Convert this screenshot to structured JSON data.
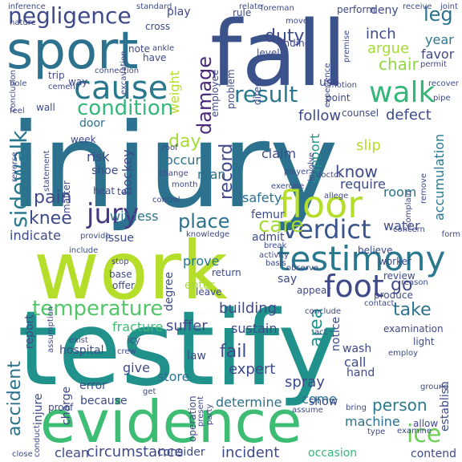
{
  "words": [
    {
      "text": "injury",
      "color": "#2c718e"
    },
    {
      "text": "testify",
      "color": "#21918c"
    },
    {
      "text": "work",
      "color": "#b5de2b"
    },
    {
      "text": "fall",
      "color": "#3b528b"
    },
    {
      "text": "evidence",
      "color": "#3dbc74"
    },
    {
      "text": "sport",
      "color": "#2c718e"
    },
    {
      "text": "floor",
      "color": "#b5de2b"
    },
    {
      "text": "testimony",
      "color": "#2a788e"
    },
    {
      "text": "walk",
      "color": "#35b779"
    },
    {
      "text": "cause",
      "color": "#2a788e"
    },
    {
      "text": "foot",
      "color": "#3e4a89"
    },
    {
      "text": "jury",
      "color": "#443983"
    },
    {
      "text": "verdict",
      "color": "#39568c"
    },
    {
      "text": "negligence",
      "color": "#3e4a89"
    },
    {
      "text": "temperature",
      "color": "#54c568"
    },
    {
      "text": "condition",
      "color": "#35b779"
    },
    {
      "text": "result",
      "color": "#2a788e"
    },
    {
      "text": "sidewalk",
      "color": "#2a788e"
    },
    {
      "text": "damage",
      "color": "#482878"
    },
    {
      "text": "ice",
      "color": "#6ece58"
    },
    {
      "text": "duty",
      "color": "#3e4a89"
    },
    {
      "text": "leg",
      "color": "#2c718e"
    },
    {
      "text": "care",
      "color": "#a5db36"
    },
    {
      "text": "place",
      "color": "#2c718e"
    },
    {
      "text": "record",
      "color": "#3e4a89"
    },
    {
      "text": "knee",
      "color": "#3e4a89"
    },
    {
      "text": "pain",
      "color": "#3e4a89"
    },
    {
      "text": "accident",
      "color": "#2c718e"
    },
    {
      "text": "area",
      "color": "#21918c"
    },
    {
      "text": "fail",
      "color": "#3e4a89"
    },
    {
      "text": "take",
      "color": "#2c718e"
    },
    {
      "text": "know",
      "color": "#3e4a89"
    },
    {
      "text": "day",
      "color": "#a5db36"
    },
    {
      "text": "go",
      "color": "#3e4a89"
    },
    {
      "text": "person",
      "color": "#2a788e"
    },
    {
      "text": "argue",
      "color": "#a5db36"
    },
    {
      "text": "chair",
      "color": "#90d743"
    },
    {
      "text": "inch",
      "color": "#3e4a89"
    },
    {
      "text": "year",
      "color": "#2a788e"
    },
    {
      "text": "favor",
      "color": "#3e4a89"
    },
    {
      "text": "building",
      "color": "#3e4a89"
    },
    {
      "text": "suffer",
      "color": "#3e4a89"
    },
    {
      "text": "fracture",
      "color": "#3dbc74"
    },
    {
      "text": "expert",
      "color": "#3e4a89"
    },
    {
      "text": "sustain",
      "color": "#3e4a89"
    },
    {
      "text": "spray",
      "color": "#3e4a89"
    },
    {
      "text": "machine",
      "color": "#2c718e"
    },
    {
      "text": "circumstance",
      "color": "#3e4a89"
    },
    {
      "text": "incident",
      "color": "#3e4a89"
    },
    {
      "text": "hockey",
      "color": "#3e4a89"
    },
    {
      "text": "witness",
      "color": "#2c718e"
    },
    {
      "text": "safety",
      "color": "#2c718e"
    },
    {
      "text": "water",
      "color": "#3e4a89"
    },
    {
      "text": "room",
      "color": "#2c718e"
    },
    {
      "text": "accumulation",
      "color": "#2a788e"
    },
    {
      "text": "follow",
      "color": "#3e4a89"
    },
    {
      "text": "defect",
      "color": "#3e4a89"
    },
    {
      "text": "claim",
      "color": "#3e4a89"
    },
    {
      "text": "support",
      "color": "#21918c"
    },
    {
      "text": "slip",
      "color": "#b5de2b"
    },
    {
      "text": "require",
      "color": "#3e4a89"
    },
    {
      "text": "indicate",
      "color": "#3e4a89"
    },
    {
      "text": "issue",
      "color": "#3e4a89"
    },
    {
      "text": "prove",
      "color": "#2a788e"
    },
    {
      "text": "degree",
      "color": "#3e4a89"
    },
    {
      "text": "enter",
      "color": "#a5db36"
    },
    {
      "text": "admit",
      "color": "#3e4a89"
    },
    {
      "text": "say",
      "color": "#3e4a89"
    },
    {
      "text": "notice",
      "color": "#3e4a89"
    },
    {
      "text": "wash",
      "color": "#3e4a89"
    },
    {
      "text": "call",
      "color": "#3e4a89"
    },
    {
      "text": "hand",
      "color": "#3e4a89"
    },
    {
      "text": "come",
      "color": "#2c718e"
    },
    {
      "text": "show",
      "color": "#3e4a89"
    },
    {
      "text": "determine",
      "color": "#2c718e"
    },
    {
      "text": "store",
      "color": "#2c718e"
    },
    {
      "text": "give",
      "color": "#3e4a89"
    },
    {
      "text": "law",
      "color": "#3e4a89"
    },
    {
      "text": "because",
      "color": "#3e4a89"
    },
    {
      "text": "charge",
      "color": "#3e4a89"
    },
    {
      "text": "injure",
      "color": "#3e4a89"
    },
    {
      "text": "report",
      "color": "#3e4a89"
    },
    {
      "text": "hospital",
      "color": "#3e4a89"
    },
    {
      "text": "error",
      "color": "#3e4a89"
    },
    {
      "text": "clean",
      "color": "#3e4a89"
    },
    {
      "text": "consider",
      "color": "#3e4a89"
    },
    {
      "text": "establish",
      "color": "#3e4a89"
    },
    {
      "text": "contend",
      "color": "#3e4a89"
    },
    {
      "text": "occasion",
      "color": "#35b779"
    },
    {
      "text": "risk",
      "color": "#3e4a89"
    },
    {
      "text": "shoe",
      "color": "#3e4a89"
    },
    {
      "text": "man",
      "color": "#2c718e"
    },
    {
      "text": "occur",
      "color": "#2c718e"
    },
    {
      "text": "weight",
      "color": "#b5de2b"
    },
    {
      "text": "door",
      "color": "#2c718e"
    },
    {
      "text": "femur",
      "color": "#3e4a89"
    },
    {
      "text": "play",
      "color": "#3e4a89"
    },
    {
      "text": "deny",
      "color": "#3e4a89"
    },
    {
      "text": "use",
      "color": "#3e4a89"
    },
    {
      "text": "way",
      "color": "#3e4a89"
    },
    {
      "text": "trip",
      "color": "#3e4a89"
    },
    {
      "text": "wall",
      "color": "#3e4a89"
    },
    {
      "text": "cross",
      "color": "#3e4a89"
    },
    {
      "text": "have",
      "color": "#3e4a89"
    },
    {
      "text": "note",
      "color": "#3e4a89"
    },
    {
      "text": "week",
      "color": "#3e4a89"
    },
    {
      "text": "tell",
      "color": "#3e4a89"
    },
    {
      "text": "heat",
      "color": "#3e4a89"
    },
    {
      "text": "matter",
      "color": "#3e4a89"
    },
    {
      "text": "counsel",
      "color": "#3e4a89"
    },
    {
      "text": "point",
      "color": "#3e4a89"
    },
    {
      "text": "direct",
      "color": "#3e4a89"
    },
    {
      "text": "problem",
      "color": "#3e4a89"
    },
    {
      "text": "employee",
      "color": "#3e4a89"
    },
    {
      "text": "level",
      "color": "#3e4a89"
    },
    {
      "text": "finding",
      "color": "#3e4a89"
    },
    {
      "text": "perform",
      "color": "#3e4a89"
    },
    {
      "text": "rule",
      "color": "#3e4a89"
    },
    {
      "text": "standard",
      "color": "#3e4a89"
    },
    {
      "text": "foreman",
      "color": "#3e4a89"
    },
    {
      "text": "relate",
      "color": "#3e4a89"
    },
    {
      "text": "receive",
      "color": "#3e4a89"
    },
    {
      "text": "joint",
      "color": "#3e4a89"
    },
    {
      "text": "permit",
      "color": "#3e4a89"
    },
    {
      "text": "premise",
      "color": "#3e4a89"
    },
    {
      "text": "experience",
      "color": "#3e4a89"
    },
    {
      "text": "motion",
      "color": "#3e4a89"
    },
    {
      "text": "pipe",
      "color": "#3e4a89"
    },
    {
      "text": "recover",
      "color": "#3e4a89"
    },
    {
      "text": "move",
      "color": "#3e4a89"
    },
    {
      "text": "player",
      "color": "#3e4a89"
    },
    {
      "text": "involve",
      "color": "#3e4a89"
    },
    {
      "text": "doctor",
      "color": "#3e4a89"
    },
    {
      "text": "exercise",
      "color": "#3e4a89"
    },
    {
      "text": "allege",
      "color": "#3e4a89"
    },
    {
      "text": "complain",
      "color": "#3e4a89"
    },
    {
      "text": "remove",
      "color": "#3e4a89"
    },
    {
      "text": "form",
      "color": "#3e4a89"
    },
    {
      "text": "concern",
      "color": "#3e4a89"
    },
    {
      "text": "worker",
      "color": "#3e4a89"
    },
    {
      "text": "believe",
      "color": "#3e4a89"
    },
    {
      "text": "review",
      "color": "#3e4a89"
    },
    {
      "text": "reason",
      "color": "#3e4a89"
    },
    {
      "text": "produce",
      "color": "#3e4a89"
    },
    {
      "text": "contact",
      "color": "#3e4a89"
    },
    {
      "text": "examination",
      "color": "#3e4a89"
    },
    {
      "text": "light",
      "color": "#3e4a89"
    },
    {
      "text": "employ",
      "color": "#3e4a89"
    },
    {
      "text": "ground",
      "color": "#3e4a89"
    },
    {
      "text": "allow",
      "color": "#3e4a89"
    },
    {
      "text": "examine",
      "color": "#3e4a89"
    },
    {
      "text": "type",
      "color": "#3e4a89"
    },
    {
      "text": "bring",
      "color": "#3e4a89"
    },
    {
      "text": "assume",
      "color": "#3e4a89"
    },
    {
      "text": "act",
      "color": "#3e4a89"
    },
    {
      "text": "appear",
      "color": "#3e4a89"
    },
    {
      "text": "conclude",
      "color": "#3e4a89"
    },
    {
      "text": "observe",
      "color": "#3e4a89"
    },
    {
      "text": "basis",
      "color": "#3e4a89"
    },
    {
      "text": "activity",
      "color": "#3e4a89"
    },
    {
      "text": "knowledge",
      "color": "#3e4a89"
    },
    {
      "text": "break",
      "color": "#3e4a89"
    },
    {
      "text": "leave",
      "color": "#3e4a89"
    },
    {
      "text": "return",
      "color": "#3e4a89"
    },
    {
      "text": "stop",
      "color": "#3e4a89"
    },
    {
      "text": "base",
      "color": "#3e4a89"
    },
    {
      "text": "offer",
      "color": "#3e4a89"
    },
    {
      "text": "provide",
      "color": "#3e4a89"
    },
    {
      "text": "include",
      "color": "#3e4a89"
    },
    {
      "text": "assumption",
      "color": "#3e4a89"
    },
    {
      "text": "exist",
      "color": "#3e4a89"
    },
    {
      "text": "crew",
      "color": "#3e4a89"
    },
    {
      "text": "icy",
      "color": "#3e4a89"
    },
    {
      "text": "get",
      "color": "#3e4a89"
    },
    {
      "text": "operation",
      "color": "#3e4a89"
    },
    {
      "text": "present",
      "color": "#3e4a89"
    },
    {
      "text": "party",
      "color": "#3e4a89"
    },
    {
      "text": "proof",
      "color": "#3e4a89"
    },
    {
      "text": "conduct",
      "color": "#3e4a89"
    },
    {
      "text": "close",
      "color": "#3e4a89"
    },
    {
      "text": "control",
      "color": "#3e4a89"
    },
    {
      "text": "month",
      "color": "#3e4a89"
    },
    {
      "text": "change",
      "color": "#3e4a89"
    },
    {
      "text": "roof",
      "color": "#3e4a89"
    },
    {
      "text": "statement",
      "color": "#3e4a89"
    },
    {
      "text": "reverse",
      "color": "#3e4a89"
    },
    {
      "text": "feel",
      "color": "#3e4a89"
    },
    {
      "text": "hole",
      "color": "#3e4a89"
    },
    {
      "text": "cement",
      "color": "#3e4a89"
    },
    {
      "text": "conclusion",
      "color": "#3e4a89"
    },
    {
      "text": "connection",
      "color": "#3e4a89"
    },
    {
      "text": "excavation",
      "color": "#3e4a89"
    },
    {
      "text": "ankle",
      "color": "#3e4a89"
    },
    {
      "text": "nature",
      "color": "#3e4a89"
    },
    {
      "text": "inference",
      "color": "#3e4a89"
    }
  ]
}
